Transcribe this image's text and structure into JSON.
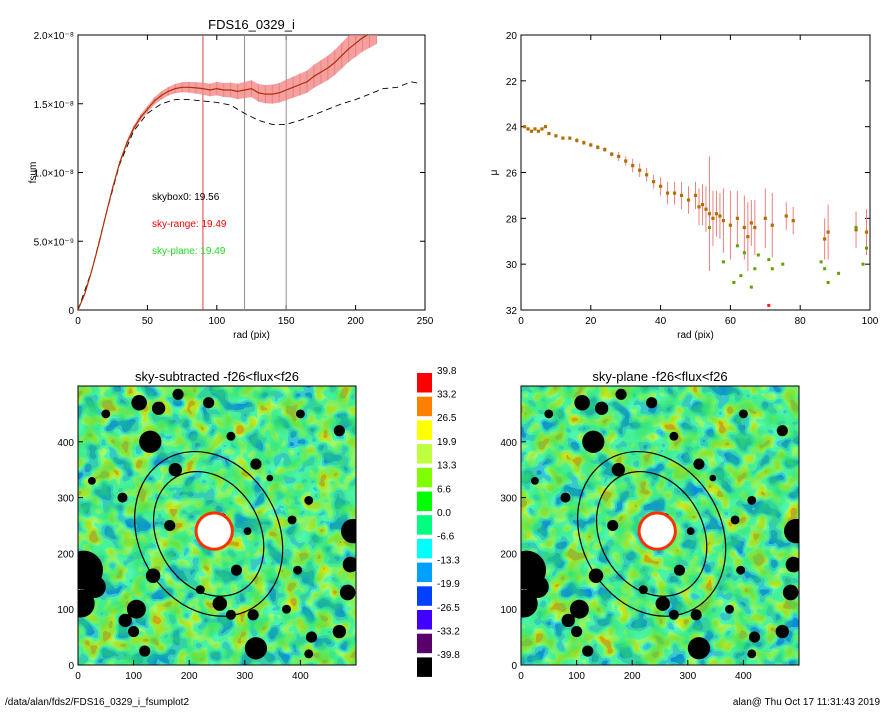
{
  "footer": {
    "path": "/data/alan/fds2/FDS16_0329_i_fsumplot2",
    "stamp": "alan@  Thu Oct 17 11:31:43 2019"
  },
  "colors": {
    "curve": "#b03000",
    "error": "#f08080",
    "dashed": "#000000",
    "sky_range": "#ff0000",
    "sky_plane": "#22dd22",
    "vline_red": "#e04040",
    "vline_gray": "#909090",
    "point_a": "#b07000",
    "point_b": "#60a000",
    "pmark": "#ff2020"
  },
  "chart_data": [
    {
      "id": "fsum",
      "type": "line",
      "title": "FDS16_0329_i",
      "xlabel": "rad (pix)",
      "ylabel": "fsum",
      "xlim": [
        0,
        250
      ],
      "ylim": [
        0,
        2e-08
      ],
      "x_ticks": [
        {
          "v": 0,
          "t": "0"
        },
        {
          "v": 50,
          "t": "50"
        },
        {
          "v": 100,
          "t": "100"
        },
        {
          "v": 150,
          "t": "150"
        },
        {
          "v": 200,
          "t": "200"
        },
        {
          "v": 250,
          "t": "250"
        }
      ],
      "y_ticks": [
        {
          "v": 0,
          "t": "0"
        },
        {
          "v": 5e-09,
          "t": "5.0×10⁻⁹"
        },
        {
          "v": 1e-08,
          "t": "1.0×10⁻⁸"
        },
        {
          "v": 1.5e-08,
          "t": "1.5×10⁻⁸"
        },
        {
          "v": 2e-08,
          "t": "2.0×10⁻⁸"
        }
      ],
      "vlines": [
        {
          "x": 90,
          "color": "red"
        },
        {
          "x": 120,
          "color": "gray"
        },
        {
          "x": 150,
          "color": "gray"
        }
      ],
      "series": [
        {
          "style": "solid-with-errors",
          "x": [
            0,
            5,
            10,
            15,
            20,
            25,
            30,
            35,
            40,
            45,
            50,
            55,
            60,
            65,
            70,
            75,
            80,
            85,
            90,
            95,
            100,
            105,
            110,
            115,
            120,
            125,
            130,
            135,
            140,
            145,
            150,
            155,
            160,
            165,
            170,
            175,
            180,
            185,
            190,
            195,
            200,
            205,
            210,
            215
          ],
          "y": [
            0,
            1.2e-09,
            2.9e-09,
            4.8e-09,
            6.9e-09,
            8.9e-09,
            1.07e-08,
            1.21e-08,
            1.32e-08,
            1.4e-08,
            1.46e-08,
            1.52e-08,
            1.56e-08,
            1.59e-08,
            1.61e-08,
            1.62e-08,
            1.62e-08,
            1.615e-08,
            1.61e-08,
            1.6e-08,
            1.61e-08,
            1.6e-08,
            1.6e-08,
            1.59e-08,
            1.6e-08,
            1.61e-08,
            1.58e-08,
            1.57e-08,
            1.57e-08,
            1.58e-08,
            1.6e-08,
            1.62e-08,
            1.64e-08,
            1.66e-08,
            1.7e-08,
            1.73e-08,
            1.76e-08,
            1.8e-08,
            1.85e-08,
            1.9e-08,
            1.94e-08,
            1.98e-08,
            2.01e-08,
            2.04e-08
          ],
          "err": [
            0,
            2e-11,
            4e-11,
            7e-11,
            1e-10,
            1.2e-10,
            1.4e-10,
            1.6e-10,
            1.9e-10,
            2.1e-10,
            2.4e-10,
            2.6e-10,
            2.9e-10,
            3.1e-10,
            3.4e-10,
            3.6e-10,
            3.9e-10,
            4.1e-10,
            4.4e-10,
            4.6e-10,
            4.9e-10,
            5.1e-10,
            5.4e-10,
            5.6e-10,
            5.9e-10,
            6.1e-10,
            6.4e-10,
            6.6e-10,
            6.9e-10,
            7.1e-10,
            7.4e-10,
            7.6e-10,
            7.9e-10,
            8.1e-10,
            8.4e-10,
            8.6e-10,
            8.9e-10,
            9.1e-10,
            9.4e-10,
            9.6e-10,
            9.9e-10,
            1.01e-09,
            1.04e-09,
            1.06e-09
          ]
        },
        {
          "style": "dashed",
          "x": [
            0,
            10,
            20,
            30,
            40,
            50,
            60,
            70,
            80,
            90,
            100,
            110,
            120,
            130,
            140,
            150,
            160,
            170,
            180,
            190,
            200,
            210,
            220,
            230,
            240,
            245
          ],
          "y": [
            0,
            2.9e-09,
            6.9e-09,
            1.06e-08,
            1.3e-08,
            1.43e-08,
            1.5e-08,
            1.53e-08,
            1.53e-08,
            1.52e-08,
            1.51e-08,
            1.49e-08,
            1.43e-08,
            1.38e-08,
            1.35e-08,
            1.35e-08,
            1.38e-08,
            1.42e-08,
            1.46e-08,
            1.5e-08,
            1.53e-08,
            1.57e-08,
            1.61e-08,
            1.62e-08,
            1.66e-08,
            1.65e-08
          ]
        }
      ],
      "annotations": [
        {
          "text": "skybox0: 19.56",
          "color": "black"
        },
        {
          "text": "sky-range: 19.49",
          "color": "red"
        },
        {
          "text": "sky-plane: 19.49",
          "color": "green"
        }
      ]
    },
    {
      "id": "mu",
      "type": "scatter",
      "title": "",
      "xlabel": "rad (pix)",
      "ylabel": "μ",
      "xlim": [
        0,
        100
      ],
      "ylim": [
        32,
        20
      ],
      "x_ticks": [
        {
          "v": 0,
          "t": "0"
        },
        {
          "v": 20,
          "t": "20"
        },
        {
          "v": 40,
          "t": "40"
        },
        {
          "v": 60,
          "t": "60"
        },
        {
          "v": 80,
          "t": "80"
        },
        {
          "v": 100,
          "t": "100"
        }
      ],
      "y_ticks": [
        {
          "v": 20,
          "t": "20"
        },
        {
          "v": 22,
          "t": "22"
        },
        {
          "v": 24,
          "t": "24"
        },
        {
          "v": 26,
          "t": "26"
        },
        {
          "v": 28,
          "t": "28"
        },
        {
          "v": 30,
          "t": "30"
        },
        {
          "v": 32,
          "t": "32"
        }
      ],
      "x": [
        1,
        2,
        3,
        4,
        5,
        6,
        7,
        8,
        10,
        12,
        14,
        16,
        18,
        20,
        22,
        24,
        26,
        28,
        30,
        32,
        34,
        36,
        38,
        40,
        42,
        44,
        46,
        48,
        50,
        51,
        52,
        53,
        54,
        55,
        56,
        57,
        58,
        60,
        62,
        64,
        65,
        66,
        67,
        70,
        72,
        76,
        78,
        87,
        88,
        96,
        99
      ],
      "y": [
        24.0,
        24.1,
        24.2,
        24.1,
        24.2,
        24.1,
        24.0,
        24.3,
        24.4,
        24.5,
        24.5,
        24.6,
        24.7,
        24.8,
        24.9,
        25.0,
        25.2,
        25.3,
        25.5,
        25.7,
        25.9,
        26.1,
        26.4,
        26.6,
        26.9,
        26.9,
        27.0,
        27.2,
        27.0,
        27.5,
        27.4,
        27.6,
        27.8,
        28.0,
        27.8,
        27.9,
        28.1,
        28.3,
        28.0,
        28.4,
        28.8,
        28.2,
        28.4,
        28.0,
        28.3,
        27.9,
        28.1,
        28.9,
        28.6,
        28.5,
        28.6
      ],
      "err": [
        0.05,
        0.05,
        0.05,
        0.05,
        0.05,
        0.05,
        0.05,
        0.05,
        0.05,
        0.05,
        0.05,
        0.1,
        0.1,
        0.1,
        0.1,
        0.1,
        0.1,
        0.2,
        0.2,
        0.3,
        0.3,
        0.3,
        0.3,
        0.4,
        0.5,
        0.5,
        0.6,
        0.6,
        0.6,
        0.8,
        0.9,
        1.0,
        2.5,
        1.2,
        1.0,
        1.0,
        1.4,
        1.5,
        1.2,
        1.4,
        1.5,
        1.0,
        1.2,
        1.3,
        1.4,
        0.6,
        0.6,
        0.9,
        1.2,
        0.8,
        1.0
      ],
      "x2": [
        54,
        58,
        61,
        62,
        63,
        64,
        66,
        67,
        68,
        71,
        72,
        75,
        86,
        87,
        88,
        91,
        96,
        98,
        99
      ],
      "y2": [
        28.4,
        29.9,
        30.8,
        29.2,
        30.5,
        29.5,
        31.0,
        30.2,
        29.6,
        29.8,
        30.2,
        30.0,
        29.9,
        30.2,
        30.8,
        30.4,
        28.4,
        30.0,
        29.3
      ],
      "p_marker": {
        "x": 71,
        "y": 31.8
      }
    },
    {
      "id": "map_left",
      "type": "heatmap",
      "title": "sky-subtracted -f26<flux<f26",
      "xlim": [
        0,
        500
      ],
      "ylim": [
        0,
        500
      ],
      "x_ticks": [
        {
          "v": 0,
          "t": "0"
        },
        {
          "v": 100,
          "t": "100"
        },
        {
          "v": 200,
          "t": "200"
        },
        {
          "v": 300,
          "t": "300"
        },
        {
          "v": 400,
          "t": "400"
        }
      ],
      "y_ticks": [
        {
          "v": 0,
          "t": "0"
        },
        {
          "v": 100,
          "t": "100"
        },
        {
          "v": 200,
          "t": "200"
        },
        {
          "v": 300,
          "t": "300"
        },
        {
          "v": 400,
          "t": "400"
        }
      ],
      "ellipses": [
        {
          "cx": 235,
          "cy": 235,
          "rx": 125,
          "ry": 155,
          "rot": -30
        },
        {
          "cx": 235,
          "cy": 235,
          "rx": 92,
          "ry": 118,
          "rot": -30
        }
      ],
      "masks": [
        {
          "x": 110,
          "y": 470,
          "r": 14
        },
        {
          "x": 145,
          "y": 460,
          "r": 12
        },
        {
          "x": 180,
          "y": 485,
          "r": 10
        },
        {
          "x": 235,
          "y": 470,
          "r": 10
        },
        {
          "x": 130,
          "y": 400,
          "r": 20
        },
        {
          "x": 175,
          "y": 350,
          "r": 12
        },
        {
          "x": 275,
          "y": 410,
          "r": 8
        },
        {
          "x": 320,
          "y": 360,
          "r": 10
        },
        {
          "x": 165,
          "y": 250,
          "r": 10
        },
        {
          "x": 305,
          "y": 240,
          "r": 7
        },
        {
          "x": 260,
          "y": 265,
          "r": 7
        },
        {
          "x": 285,
          "y": 170,
          "r": 10
        },
        {
          "x": 255,
          "y": 110,
          "r": 13
        },
        {
          "x": 275,
          "y": 90,
          "r": 9
        },
        {
          "x": 10,
          "y": 170,
          "r": 35
        },
        {
          "x": 5,
          "y": 110,
          "r": 25
        },
        {
          "x": 30,
          "y": 140,
          "r": 20
        },
        {
          "x": 105,
          "y": 100,
          "r": 17
        },
        {
          "x": 85,
          "y": 80,
          "r": 12
        },
        {
          "x": 135,
          "y": 160,
          "r": 13
        },
        {
          "x": 100,
          "y": 60,
          "r": 10
        },
        {
          "x": 320,
          "y": 30,
          "r": 20
        },
        {
          "x": 315,
          "y": 90,
          "r": 10
        },
        {
          "x": 375,
          "y": 100,
          "r": 8
        },
        {
          "x": 395,
          "y": 170,
          "r": 8
        },
        {
          "x": 385,
          "y": 260,
          "r": 8
        },
        {
          "x": 415,
          "y": 295,
          "r": 8
        },
        {
          "x": 495,
          "y": 240,
          "r": 22
        },
        {
          "x": 490,
          "y": 180,
          "r": 14
        },
        {
          "x": 485,
          "y": 130,
          "r": 14
        },
        {
          "x": 470,
          "y": 60,
          "r": 12
        },
        {
          "x": 420,
          "y": 50,
          "r": 10
        },
        {
          "x": 415,
          "y": 20,
          "r": 8
        },
        {
          "x": 120,
          "y": 25,
          "r": 10
        },
        {
          "x": 80,
          "y": 300,
          "r": 9
        },
        {
          "x": 50,
          "y": 450,
          "r": 8
        },
        {
          "x": 470,
          "y": 420,
          "r": 10
        },
        {
          "x": 400,
          "y": 450,
          "r": 8
        },
        {
          "x": 25,
          "y": 330,
          "r": 7
        },
        {
          "x": 220,
          "y": 135,
          "r": 8
        },
        {
          "x": 345,
          "y": 335,
          "r": 6
        }
      ],
      "center_blob": {
        "x": 245,
        "y": 240,
        "r": 30
      }
    },
    {
      "id": "map_right",
      "type": "heatmap",
      "title": "sky-plane -f26<flux<f26",
      "xlim": [
        0,
        500
      ],
      "ylim": [
        0,
        500
      ],
      "x_ticks": [
        {
          "v": 0,
          "t": "0"
        },
        {
          "v": 100,
          "t": "100"
        },
        {
          "v": 200,
          "t": "200"
        },
        {
          "v": 300,
          "t": "300"
        },
        {
          "v": 400,
          "t": "400"
        }
      ],
      "y_ticks": [
        {
          "v": 0,
          "t": "0"
        },
        {
          "v": 100,
          "t": "100"
        },
        {
          "v": 200,
          "t": "200"
        },
        {
          "v": 300,
          "t": "300"
        },
        {
          "v": 400,
          "t": "400"
        }
      ],
      "ellipses": [
        {
          "cx": 235,
          "cy": 235,
          "rx": 125,
          "ry": 155,
          "rot": -30
        },
        {
          "cx": 235,
          "cy": 235,
          "rx": 92,
          "ry": 118,
          "rot": -30
        }
      ],
      "masks": [
        {
          "x": 110,
          "y": 470,
          "r": 14
        },
        {
          "x": 145,
          "y": 460,
          "r": 12
        },
        {
          "x": 180,
          "y": 485,
          "r": 10
        },
        {
          "x": 235,
          "y": 470,
          "r": 10
        },
        {
          "x": 130,
          "y": 400,
          "r": 20
        },
        {
          "x": 175,
          "y": 350,
          "r": 12
        },
        {
          "x": 275,
          "y": 410,
          "r": 8
        },
        {
          "x": 320,
          "y": 360,
          "r": 10
        },
        {
          "x": 165,
          "y": 250,
          "r": 10
        },
        {
          "x": 305,
          "y": 240,
          "r": 7
        },
        {
          "x": 260,
          "y": 265,
          "r": 7
        },
        {
          "x": 285,
          "y": 170,
          "r": 10
        },
        {
          "x": 255,
          "y": 110,
          "r": 13
        },
        {
          "x": 275,
          "y": 90,
          "r": 9
        },
        {
          "x": 10,
          "y": 170,
          "r": 35
        },
        {
          "x": 5,
          "y": 110,
          "r": 25
        },
        {
          "x": 30,
          "y": 140,
          "r": 20
        },
        {
          "x": 105,
          "y": 100,
          "r": 17
        },
        {
          "x": 85,
          "y": 80,
          "r": 12
        },
        {
          "x": 135,
          "y": 160,
          "r": 13
        },
        {
          "x": 100,
          "y": 60,
          "r": 10
        },
        {
          "x": 320,
          "y": 30,
          "r": 20
        },
        {
          "x": 315,
          "y": 90,
          "r": 10
        },
        {
          "x": 375,
          "y": 100,
          "r": 8
        },
        {
          "x": 395,
          "y": 170,
          "r": 8
        },
        {
          "x": 385,
          "y": 260,
          "r": 8
        },
        {
          "x": 415,
          "y": 295,
          "r": 8
        },
        {
          "x": 495,
          "y": 240,
          "r": 22
        },
        {
          "x": 490,
          "y": 180,
          "r": 14
        },
        {
          "x": 485,
          "y": 130,
          "r": 14
        },
        {
          "x": 470,
          "y": 60,
          "r": 12
        },
        {
          "x": 420,
          "y": 50,
          "r": 10
        },
        {
          "x": 415,
          "y": 20,
          "r": 8
        },
        {
          "x": 120,
          "y": 25,
          "r": 10
        },
        {
          "x": 80,
          "y": 300,
          "r": 9
        },
        {
          "x": 50,
          "y": 450,
          "r": 8
        },
        {
          "x": 470,
          "y": 420,
          "r": 10
        },
        {
          "x": 400,
          "y": 450,
          "r": 8
        },
        {
          "x": 25,
          "y": 330,
          "r": 7
        },
        {
          "x": 220,
          "y": 135,
          "r": 8
        },
        {
          "x": 345,
          "y": 335,
          "r": 6
        }
      ],
      "center_blob": {
        "x": 245,
        "y": 240,
        "r": 30
      }
    },
    {
      "id": "colorbar",
      "type": "table",
      "levels": [
        {
          "label": "39.8",
          "color": "#ff0000"
        },
        {
          "label": "33.2",
          "color": "#ff7f00"
        },
        {
          "label": "26.5",
          "color": "#ffff00"
        },
        {
          "label": "19.9",
          "color": "#bfff3f"
        },
        {
          "label": "13.3",
          "color": "#7fff00"
        },
        {
          "label": "6.6",
          "color": "#00ff00"
        },
        {
          "label": "0.0",
          "color": "#00ff7f"
        },
        {
          "label": "-6.6",
          "color": "#00ffff"
        },
        {
          "label": "-13.3",
          "color": "#00a0ff"
        },
        {
          "label": "-19.9",
          "color": "#0040ff"
        },
        {
          "label": "-26.5",
          "color": "#4000ff"
        },
        {
          "label": "-33.2",
          "color": "#5a006a"
        },
        {
          "label": "-39.8",
          "color": "#000000"
        }
      ]
    }
  ]
}
